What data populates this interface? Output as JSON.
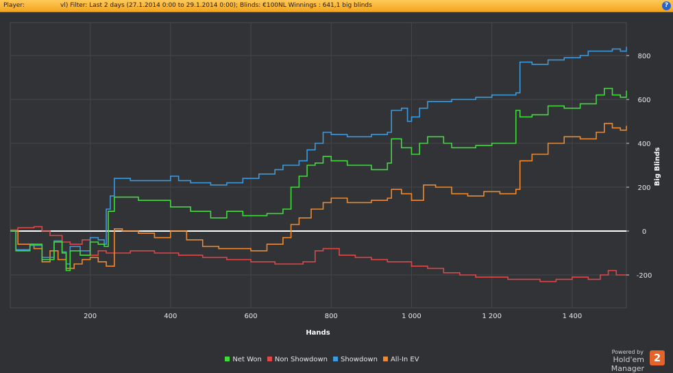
{
  "header": {
    "player_label": "Player:",
    "filter_text": "vl)  Filter:  Last 2 days (27.1.2014 0:00 to 29.1.2014 0:00); Blinds: €100NL  Winnings : 641,1 big blinds",
    "help_icon": "?"
  },
  "colors": {
    "background": "#2f3134",
    "net_won": "#3fdc3c",
    "non_showdown": "#e04848",
    "showdown": "#3c9ae0",
    "all_in_ev": "#ef8a2e",
    "zero_line": "#ffffff"
  },
  "branding": {
    "powered_by": "Powered by",
    "name": "Hold'em Manager",
    "logo": "2"
  },
  "chart_data": {
    "type": "line",
    "xlabel": "Hands",
    "ylabel": "Big Blinds",
    "xlim": [
      1,
      1535
    ],
    "ylim": [
      -350,
      950
    ],
    "x_ticks": [
      200,
      400,
      600,
      800,
      1000,
      1200,
      1400
    ],
    "x_tick_labels": [
      "200",
      "400",
      "600",
      "800",
      "1 000",
      "1 200",
      "1 400"
    ],
    "y_ticks": [
      -200,
      0,
      200,
      400,
      600,
      800
    ],
    "y_tick_labels": [
      "-200",
      "0",
      "200",
      "400",
      "600",
      "800"
    ],
    "grid": true,
    "legend_position": "bottom",
    "series": [
      {
        "name": "Net Won",
        "color": "#3fdc3c",
        "x": [
          1,
          15,
          50,
          80,
          110,
          130,
          140,
          150,
          175,
          200,
          220,
          235,
          245,
          260,
          320,
          400,
          450,
          500,
          540,
          580,
          640,
          680,
          700,
          720,
          740,
          760,
          780,
          800,
          840,
          900,
          940,
          950,
          975,
          1000,
          1020,
          1040,
          1080,
          1100,
          1160,
          1200,
          1260,
          1270,
          1300,
          1340,
          1380,
          1420,
          1460,
          1480,
          1500,
          1520,
          1535
        ],
        "y": [
          0,
          -90,
          -60,
          -130,
          -50,
          -100,
          -180,
          -90,
          -110,
          -50,
          -60,
          -70,
          90,
          155,
          140,
          110,
          90,
          60,
          90,
          70,
          80,
          100,
          200,
          250,
          300,
          310,
          340,
          320,
          300,
          280,
          310,
          420,
          380,
          350,
          400,
          430,
          400,
          380,
          390,
          400,
          550,
          520,
          530,
          570,
          560,
          580,
          620,
          650,
          620,
          610,
          640
        ]
      },
      {
        "name": "Non Showdown",
        "color": "#e04848",
        "x": [
          1,
          20,
          60,
          80,
          100,
          130,
          150,
          180,
          200,
          220,
          240,
          300,
          360,
          420,
          480,
          540,
          600,
          660,
          700,
          730,
          760,
          780,
          820,
          860,
          900,
          940,
          1000,
          1040,
          1080,
          1120,
          1160,
          1200,
          1240,
          1280,
          1320,
          1360,
          1400,
          1440,
          1470,
          1490,
          1510,
          1535
        ],
        "y": [
          5,
          15,
          20,
          0,
          -20,
          -50,
          -60,
          -40,
          -110,
          -90,
          -100,
          -90,
          -100,
          -110,
          -120,
          -130,
          -140,
          -150,
          -150,
          -140,
          -90,
          -80,
          -110,
          -120,
          -130,
          -140,
          -160,
          -170,
          -190,
          -200,
          -210,
          -210,
          -220,
          -220,
          -230,
          -220,
          -210,
          -220,
          -200,
          -180,
          -200,
          -200
        ]
      },
      {
        "name": "Showdown",
        "color": "#3c9ae0",
        "x": [
          1,
          15,
          50,
          80,
          110,
          130,
          140,
          150,
          175,
          200,
          220,
          235,
          240,
          250,
          260,
          300,
          360,
          400,
          420,
          450,
          500,
          540,
          580,
          620,
          660,
          680,
          700,
          720,
          740,
          760,
          780,
          800,
          840,
          900,
          940,
          950,
          975,
          990,
          1000,
          1020,
          1040,
          1100,
          1160,
          1200,
          1240,
          1260,
          1270,
          1300,
          1340,
          1380,
          1420,
          1440,
          1480,
          1500,
          1520,
          1535
        ],
        "y": [
          0,
          -85,
          -65,
          -120,
          -45,
          -95,
          -150,
          -70,
          -90,
          -30,
          -40,
          -60,
          100,
          160,
          240,
          230,
          230,
          250,
          230,
          220,
          210,
          220,
          240,
          260,
          280,
          300,
          300,
          320,
          370,
          400,
          450,
          440,
          430,
          440,
          450,
          550,
          560,
          500,
          520,
          560,
          590,
          600,
          610,
          620,
          620,
          630,
          770,
          760,
          780,
          790,
          800,
          820,
          820,
          830,
          820,
          840
        ]
      },
      {
        "name": "All-In EV",
        "color": "#ef8a2e",
        "x": [
          1,
          20,
          60,
          80,
          100,
          120,
          140,
          160,
          180,
          200,
          220,
          240,
          260,
          280,
          320,
          360,
          400,
          440,
          480,
          520,
          560,
          600,
          640,
          680,
          700,
          720,
          750,
          780,
          800,
          840,
          900,
          940,
          950,
          975,
          1000,
          1030,
          1060,
          1100,
          1140,
          1180,
          1220,
          1260,
          1270,
          1300,
          1340,
          1380,
          1420,
          1460,
          1480,
          1500,
          1520,
          1535
        ],
        "y": [
          0,
          -60,
          -80,
          -140,
          -90,
          -130,
          -170,
          -150,
          -130,
          -120,
          -140,
          -160,
          10,
          0,
          -10,
          -30,
          0,
          -40,
          -70,
          -80,
          -80,
          -90,
          -60,
          -30,
          30,
          60,
          100,
          130,
          150,
          130,
          140,
          150,
          190,
          170,
          140,
          210,
          200,
          170,
          160,
          180,
          170,
          190,
          320,
          350,
          400,
          430,
          420,
          450,
          490,
          470,
          460,
          480
        ]
      }
    ]
  }
}
